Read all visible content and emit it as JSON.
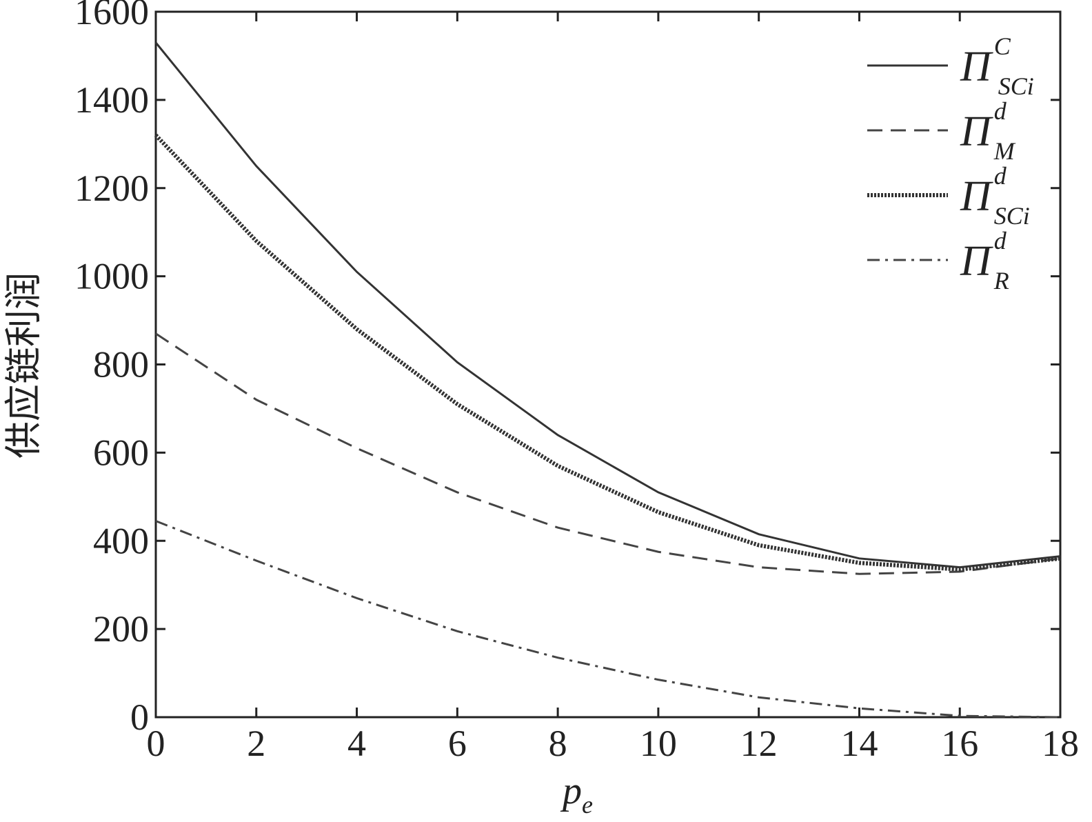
{
  "chart_data": {
    "type": "line",
    "y_label": "供应链利润",
    "x_label": {
      "text": "p",
      "sub": "e"
    },
    "x": [
      0,
      2,
      4,
      6,
      8,
      10,
      12,
      14,
      16,
      18
    ],
    "series": [
      {
        "name": "Π",
        "sup": "C",
        "sub": "SCi",
        "color": "#333333",
        "style": "solid",
        "values": [
          1530,
          1250,
          1010,
          805,
          640,
          510,
          415,
          360,
          340,
          365
        ]
      },
      {
        "name": "Π",
        "sup": "d",
        "sub": "M",
        "color": "#444444",
        "style": "dashed",
        "values": [
          870,
          720,
          610,
          510,
          430,
          375,
          340,
          325,
          330,
          360
        ]
      },
      {
        "name": "Π",
        "sup": "d",
        "sub": "SCi",
        "color": "#333333",
        "style": "dotted",
        "values": [
          1320,
          1080,
          880,
          710,
          570,
          465,
          390,
          350,
          335,
          360
        ]
      },
      {
        "name": "Π",
        "sup": "d",
        "sub": "R",
        "color": "#444444",
        "style": "dashdot",
        "values": [
          445,
          355,
          270,
          195,
          135,
          85,
          45,
          20,
          3,
          0
        ]
      }
    ],
    "xlim": [
      0,
      18
    ],
    "xticks": [
      0,
      2,
      4,
      6,
      8,
      10,
      12,
      14,
      16,
      18
    ],
    "ylim": [
      0,
      1600
    ],
    "yticks": [
      0,
      200,
      400,
      600,
      800,
      1000,
      1200,
      1400,
      1600
    ],
    "legend": "upper right"
  }
}
